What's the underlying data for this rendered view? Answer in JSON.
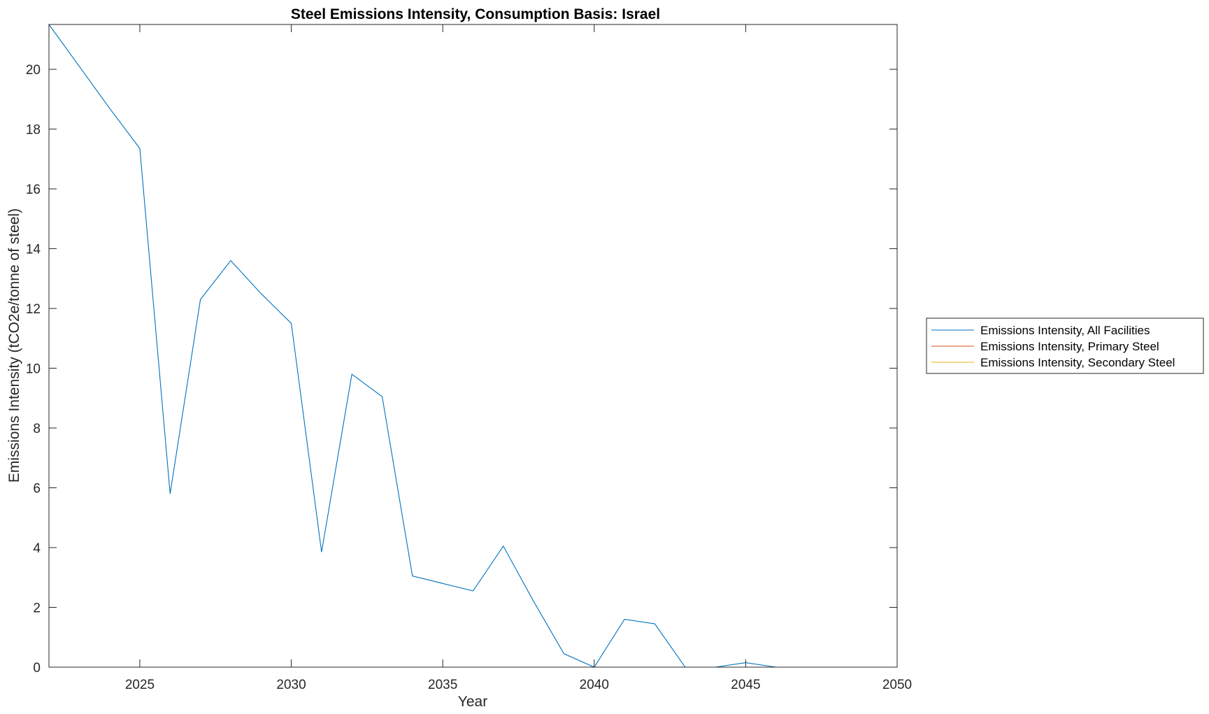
{
  "chart_data": {
    "type": "line",
    "title": "Steel Emissions Intensity, Consumption Basis: Israel",
    "xlabel": "Year",
    "ylabel": "Emissions Intensity (tCO2e/tonne of steel)",
    "xlim": [
      2022,
      2050
    ],
    "ylim": [
      0,
      21.5
    ],
    "xticks": [
      2025,
      2030,
      2035,
      2040,
      2045,
      2050
    ],
    "yticks": [
      0,
      2,
      4,
      6,
      8,
      10,
      12,
      14,
      16,
      18,
      20
    ],
    "grid": false,
    "legend_position": "outside-right",
    "series": [
      {
        "name": "Emissions Intensity, All Facilities",
        "color": "#0072BD",
        "x": [
          2022,
          2023,
          2024,
          2025,
          2026,
          2027,
          2028,
          2029,
          2030,
          2031,
          2032,
          2033,
          2034,
          2035,
          2036,
          2037,
          2038,
          2039,
          2040,
          2041,
          2042,
          2043,
          2044,
          2045,
          2046,
          2047,
          2048,
          2049,
          2050
        ],
        "y": [
          21.5,
          20.1,
          18.7,
          17.35,
          5.8,
          12.3,
          13.6,
          12.5,
          11.5,
          3.85,
          9.8,
          9.05,
          3.05,
          2.8,
          2.55,
          4.05,
          2.2,
          0.45,
          0.0,
          1.6,
          1.45,
          0.0,
          0.0,
          0.15,
          0.0,
          0.0,
          0.0,
          0.0,
          0.0
        ]
      },
      {
        "name": "Emissions Intensity, Primary Steel",
        "color": "#D95319",
        "x": [
          2022,
          2050
        ],
        "y": [
          0,
          0
        ]
      },
      {
        "name": "Emissions Intensity, Secondary Steel",
        "color": "#EDB120",
        "x": [
          2022,
          2050
        ],
        "y": [
          0,
          0
        ]
      }
    ]
  }
}
